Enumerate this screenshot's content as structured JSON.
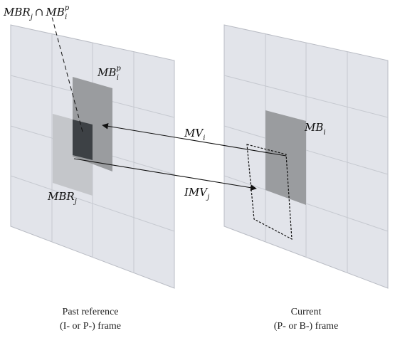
{
  "labels": {
    "intersection": {
      "a": "MBR",
      "a_sub": "j",
      "op": "∩",
      "b": "MB",
      "b_sub": "i",
      "b_sup": "p"
    },
    "mb_p": {
      "base": "MB",
      "sub": "i",
      "sup": "p"
    },
    "mbr": {
      "base": "MBR",
      "sub": "j"
    },
    "mv": {
      "base": "MV",
      "sub": "i"
    },
    "imv": {
      "base": "IMV",
      "sub": "j"
    },
    "mb": {
      "base": "MB",
      "sub": "i"
    }
  },
  "captions": {
    "past": {
      "line1": "Past reference",
      "line2": "(I- or P-) frame"
    },
    "current": {
      "line1": "Current",
      "line2": "(P- or B-) frame"
    }
  },
  "colors": {
    "frame": "#e2e4ea",
    "mb_p_block": "#9a9c9f",
    "mbr_block": "#c4c6ca",
    "overlap_block": "#3d4145",
    "current_mb_block": "#9a9c9f"
  }
}
